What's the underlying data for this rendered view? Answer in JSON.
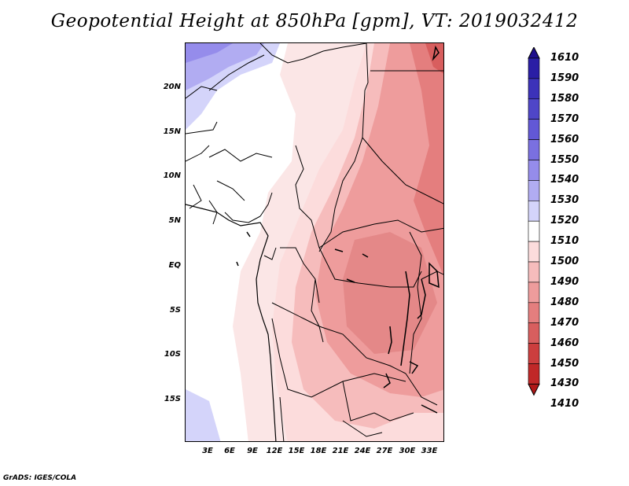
{
  "title": "Geopotential Height at 850hPa [gpm], VT: 2019032412",
  "footer": "GrADS: IGES/COLA",
  "map": {
    "lat_labels": [
      "20N",
      "15N",
      "10N",
      "5N",
      "EQ",
      "5S",
      "10S",
      "15S"
    ],
    "lon_labels": [
      "3E",
      "6E",
      "9E",
      "12E",
      "15E",
      "18E",
      "21E",
      "24E",
      "27E",
      "30E",
      "33E"
    ]
  },
  "colorbar": {
    "levels": [
      "1610",
      "1590",
      "1580",
      "1570",
      "1560",
      "1550",
      "1540",
      "1530",
      "1520",
      "1510",
      "1500",
      "1490",
      "1480",
      "1470",
      "1460",
      "1450",
      "1430",
      "1410"
    ],
    "colors": [
      "#1e0e8c",
      "#2a1ea5",
      "#3c32b9",
      "#4f46c8",
      "#6258d6",
      "#7a70e0",
      "#958ceb",
      "#b1acf2",
      "#d4d4fa",
      "#ffffff",
      "#fcdcdc",
      "#f6bcbc",
      "#ee9c9c",
      "#e47e7e",
      "#d85e5e",
      "#cc3e3e",
      "#c02828",
      "#b01818"
    ]
  }
}
